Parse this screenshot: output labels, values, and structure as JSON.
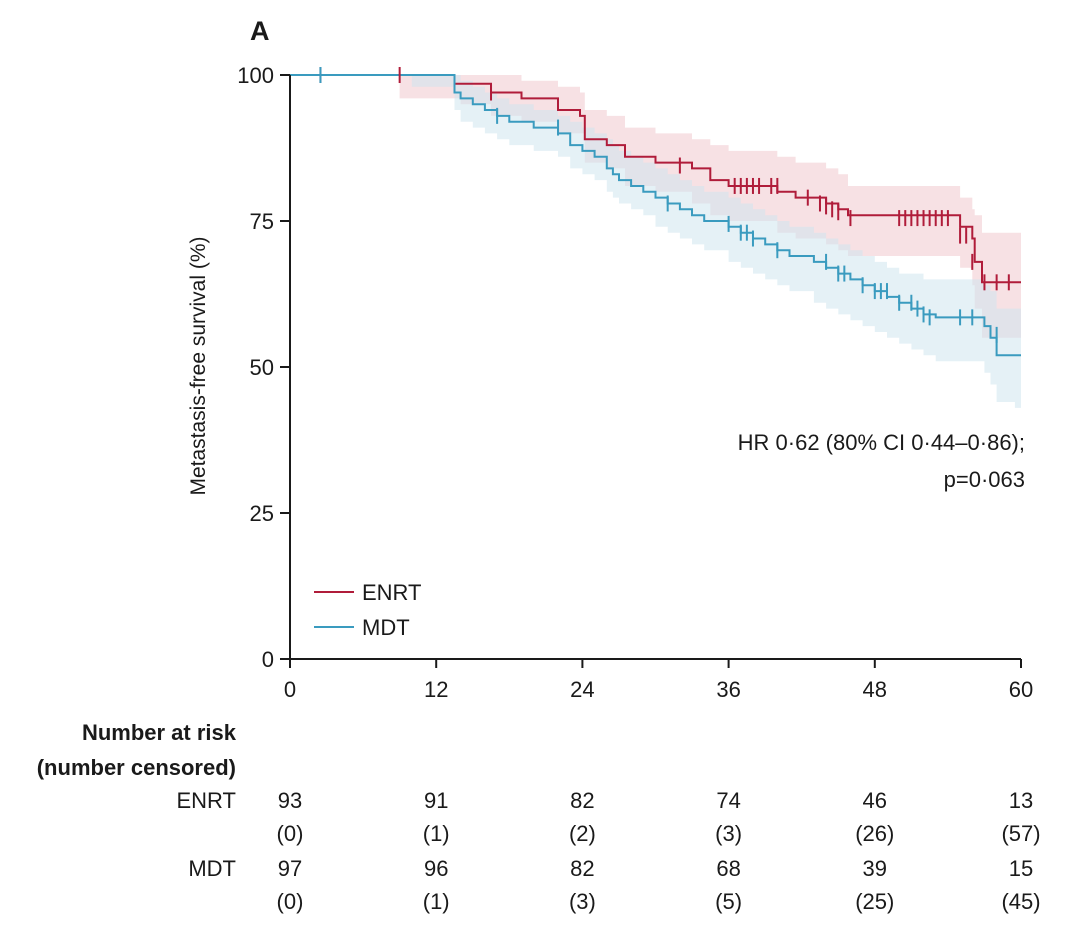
{
  "chart_data": {
    "type": "line",
    "panel_label": "A",
    "ylabel": "Metastasis-free survival (%)",
    "xlim": [
      0,
      60
    ],
    "ylim": [
      0,
      100
    ],
    "x_ticks": [
      0,
      12,
      24,
      36,
      48,
      60
    ],
    "y_ticks": [
      0,
      25,
      50,
      75,
      100
    ],
    "annotation": [
      "HR 0·62 (80% CI 0·44–0·86);",
      "p=0·063"
    ],
    "legend_position": "bottom-left",
    "series": [
      {
        "name": "ENRT",
        "color": "#b01c3a",
        "band_color": "#f0c9cd",
        "steps": [
          [
            0,
            100
          ],
          [
            13.5,
            98.5
          ],
          [
            16.5,
            97
          ],
          [
            19,
            96
          ],
          [
            22,
            94
          ],
          [
            23.8,
            93
          ],
          [
            24.2,
            89
          ],
          [
            26,
            88
          ],
          [
            27.5,
            86
          ],
          [
            30,
            85
          ],
          [
            33,
            84
          ],
          [
            34.5,
            82
          ],
          [
            36,
            81
          ],
          [
            40,
            80
          ],
          [
            41.5,
            79
          ],
          [
            44,
            78
          ],
          [
            45,
            77
          ],
          [
            45.8,
            76
          ],
          [
            55,
            74
          ],
          [
            56,
            72
          ],
          [
            56.2,
            68
          ],
          [
            56.8,
            64.5
          ],
          [
            60,
            64.5
          ]
        ],
        "lower": [
          [
            0,
            100
          ],
          [
            9,
            96
          ],
          [
            14,
            95
          ],
          [
            16.5,
            93
          ],
          [
            19,
            92
          ],
          [
            22,
            90
          ],
          [
            24.2,
            85
          ],
          [
            26,
            84
          ],
          [
            27.5,
            81
          ],
          [
            30,
            80
          ],
          [
            33,
            78
          ],
          [
            34.5,
            76
          ],
          [
            36,
            75
          ],
          [
            40,
            73
          ],
          [
            41.5,
            72
          ],
          [
            44,
            71
          ],
          [
            45,
            70
          ],
          [
            45.8,
            69
          ],
          [
            55,
            67
          ],
          [
            56,
            64
          ],
          [
            56.2,
            60
          ],
          [
            56.8,
            55
          ],
          [
            60,
            54.5
          ]
        ],
        "upper": [
          [
            0,
            100
          ],
          [
            9,
            100
          ],
          [
            14,
            100
          ],
          [
            16.5,
            100
          ],
          [
            19,
            99
          ],
          [
            22,
            98
          ],
          [
            23.8,
            97
          ],
          [
            24.2,
            94
          ],
          [
            26,
            93
          ],
          [
            27.5,
            91
          ],
          [
            30,
            90
          ],
          [
            33,
            89
          ],
          [
            34.5,
            88
          ],
          [
            36,
            87
          ],
          [
            40,
            86
          ],
          [
            41.5,
            85
          ],
          [
            44,
            84
          ],
          [
            45,
            83
          ],
          [
            45.8,
            81
          ],
          [
            55,
            79
          ],
          [
            56,
            77
          ],
          [
            56.2,
            76
          ],
          [
            56.8,
            73
          ],
          [
            60,
            72
          ]
        ],
        "censors": [
          [
            2.5,
            100
          ],
          [
            9,
            100
          ],
          [
            16.5,
            97
          ],
          [
            32,
            84.5
          ],
          [
            36.5,
            81
          ],
          [
            37,
            81
          ],
          [
            37.5,
            81
          ],
          [
            38,
            81
          ],
          [
            38.5,
            81
          ],
          [
            39.5,
            81
          ],
          [
            40,
            81
          ],
          [
            42.5,
            79
          ],
          [
            43.5,
            78
          ],
          [
            44,
            77.5
          ],
          [
            44.5,
            77
          ],
          [
            45,
            76.5
          ],
          [
            46,
            75.5
          ],
          [
            50,
            75.5
          ],
          [
            50.5,
            75.5
          ],
          [
            51,
            75.5
          ],
          [
            51.5,
            75.5
          ],
          [
            52,
            75.5
          ],
          [
            52.5,
            75.5
          ],
          [
            53,
            75.5
          ],
          [
            53.5,
            75.5
          ],
          [
            54,
            75.5
          ],
          [
            55,
            72.5
          ],
          [
            55.5,
            72.5
          ],
          [
            56,
            68
          ],
          [
            57,
            64.5
          ],
          [
            58,
            64.5
          ],
          [
            59,
            64.5
          ]
        ]
      },
      {
        "name": "MDT",
        "color": "#3a9bbf",
        "band_color": "#cfe5ef",
        "steps": [
          [
            0,
            100
          ],
          [
            13.5,
            97
          ],
          [
            14,
            96
          ],
          [
            15,
            95
          ],
          [
            16,
            94
          ],
          [
            17,
            93
          ],
          [
            18,
            92
          ],
          [
            20,
            91
          ],
          [
            22,
            90
          ],
          [
            23,
            88
          ],
          [
            24,
            87
          ],
          [
            25,
            86
          ],
          [
            26,
            84
          ],
          [
            26.5,
            83
          ],
          [
            27,
            82
          ],
          [
            28,
            81
          ],
          [
            29,
            80
          ],
          [
            30,
            79
          ],
          [
            31,
            78
          ],
          [
            32,
            77
          ],
          [
            33,
            76
          ],
          [
            34,
            75
          ],
          [
            36,
            74
          ],
          [
            37,
            73
          ],
          [
            38,
            72
          ],
          [
            39,
            71
          ],
          [
            40,
            70
          ],
          [
            41,
            69
          ],
          [
            43,
            68
          ],
          [
            44,
            67
          ],
          [
            45,
            66
          ],
          [
            46,
            65
          ],
          [
            47,
            64
          ],
          [
            48,
            63
          ],
          [
            49,
            62
          ],
          [
            50,
            61
          ],
          [
            51,
            60
          ],
          [
            52,
            59
          ],
          [
            53,
            58.5
          ],
          [
            57,
            57
          ],
          [
            57.5,
            55
          ],
          [
            58,
            52
          ],
          [
            60,
            52
          ]
        ],
        "lower": [
          [
            0,
            100
          ],
          [
            10,
            98
          ],
          [
            13.5,
            94
          ],
          [
            14,
            92
          ],
          [
            15,
            91
          ],
          [
            16,
            90
          ],
          [
            17,
            89
          ],
          [
            18,
            88
          ],
          [
            20,
            87
          ],
          [
            22,
            86
          ],
          [
            23,
            84
          ],
          [
            24,
            83
          ],
          [
            25,
            82
          ],
          [
            26,
            80
          ],
          [
            26.5,
            79
          ],
          [
            27,
            78
          ],
          [
            28,
            77
          ],
          [
            29,
            76
          ],
          [
            30,
            74
          ],
          [
            31,
            73
          ],
          [
            32,
            72
          ],
          [
            33,
            71
          ],
          [
            34,
            70
          ],
          [
            36,
            68
          ],
          [
            37,
            67
          ],
          [
            38,
            66
          ],
          [
            39,
            65
          ],
          [
            40,
            64
          ],
          [
            41,
            63
          ],
          [
            43,
            61
          ],
          [
            44,
            60
          ],
          [
            45,
            59
          ],
          [
            46,
            58
          ],
          [
            47,
            57
          ],
          [
            48,
            56
          ],
          [
            49,
            55
          ],
          [
            50,
            54
          ],
          [
            51,
            53
          ],
          [
            52,
            52
          ],
          [
            53,
            51
          ],
          [
            57,
            49
          ],
          [
            57.5,
            47
          ],
          [
            58,
            44
          ],
          [
            59.5,
            43
          ],
          [
            60,
            43
          ]
        ],
        "upper": [
          [
            0,
            100
          ],
          [
            13.5,
            100
          ],
          [
            14,
            99
          ],
          [
            15,
            98
          ],
          [
            16,
            97
          ],
          [
            17,
            96
          ],
          [
            18,
            95
          ],
          [
            20,
            94
          ],
          [
            22,
            93
          ],
          [
            23,
            92
          ],
          [
            24,
            91
          ],
          [
            25,
            90
          ],
          [
            26,
            89
          ],
          [
            26.5,
            88
          ],
          [
            27,
            87
          ],
          [
            28,
            86
          ],
          [
            29,
            85
          ],
          [
            30,
            84
          ],
          [
            31,
            83
          ],
          [
            32,
            82
          ],
          [
            33,
            81
          ],
          [
            34,
            80
          ],
          [
            36,
            79
          ],
          [
            37,
            78
          ],
          [
            38,
            77
          ],
          [
            39,
            76
          ],
          [
            40,
            75
          ],
          [
            41,
            74
          ],
          [
            43,
            73
          ],
          [
            44,
            72
          ],
          [
            45,
            71
          ],
          [
            46,
            70
          ],
          [
            47,
            69
          ],
          [
            48,
            68
          ],
          [
            49,
            67
          ],
          [
            50,
            66
          ],
          [
            51,
            66
          ],
          [
            52,
            65
          ],
          [
            53,
            65
          ],
          [
            57,
            64
          ],
          [
            57.5,
            63
          ],
          [
            58,
            60
          ],
          [
            60,
            60
          ]
        ],
        "censors": [
          [
            2.5,
            100
          ],
          [
            17,
            93
          ],
          [
            22,
            91
          ],
          [
            31,
            78
          ],
          [
            36,
            74.5
          ],
          [
            37,
            73
          ],
          [
            37.5,
            73
          ],
          [
            38,
            72
          ],
          [
            40,
            70
          ],
          [
            44,
            68
          ],
          [
            45,
            66
          ],
          [
            45.5,
            66
          ],
          [
            47,
            64
          ],
          [
            48,
            63
          ],
          [
            48.5,
            63
          ],
          [
            49,
            63
          ],
          [
            50,
            61
          ],
          [
            51,
            61
          ],
          [
            51.5,
            60
          ],
          [
            52,
            59
          ],
          [
            52.5,
            58.5
          ],
          [
            55,
            58.5
          ],
          [
            56,
            58.5
          ],
          [
            58,
            55.5
          ]
        ]
      }
    ],
    "risk_table": {
      "title_lines": [
        "Number at risk",
        "(number censored)"
      ],
      "rows": [
        {
          "name": "ENRT",
          "at_risk": [
            "93",
            "91",
            "82",
            "74",
            "46",
            "13"
          ],
          "censored": [
            "(0)",
            "(1)",
            "(2)",
            "(3)",
            "(26)",
            "(57)"
          ]
        },
        {
          "name": "MDT",
          "at_risk": [
            "97",
            "96",
            "82",
            "68",
            "39",
            "15"
          ],
          "censored": [
            "(0)",
            "(1)",
            "(3)",
            "(5)",
            "(25)",
            "(45)"
          ]
        }
      ]
    }
  }
}
